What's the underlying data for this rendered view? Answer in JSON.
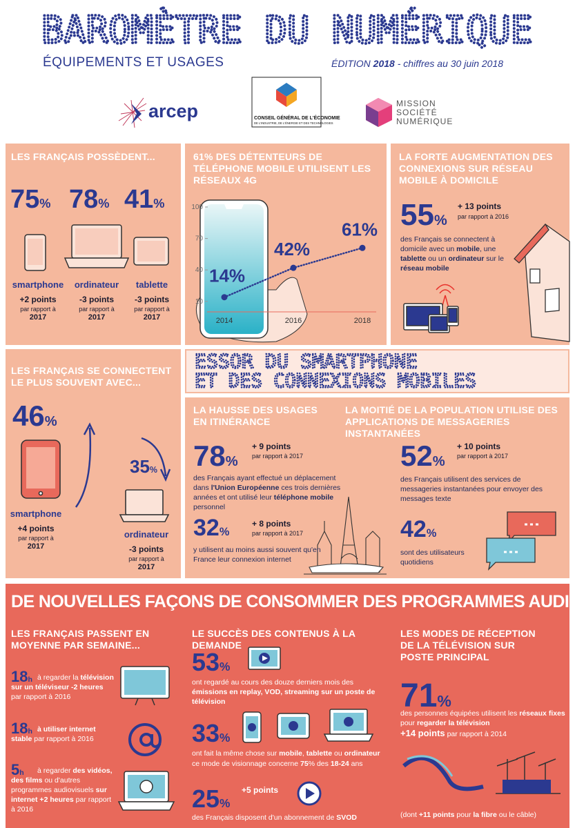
{
  "header": {
    "title": "BAROMÈTRE DU NUMÉRIQUE",
    "subtitle": "ÉQUIPEMENTS ET USAGES",
    "edition": [
      "ÉDITION ",
      "2018",
      " - chiffres au 30 juin 2018"
    ]
  },
  "logos": {
    "arcep": "arcep",
    "cge": [
      "CONSEIL GÉNÉRAL DE L'ÉCONOMIE",
      "DE L'INDUSTRIE, DE L'ÉNERGIE ET DES TECHNOLOGIES"
    ],
    "msn": [
      "MISSION",
      "SOCIÉTÉ",
      "NUMÉRIQUE"
    ]
  },
  "possession": {
    "title": "LES FRANÇAIS POSSÈDENT...",
    "items": [
      {
        "value": "75",
        "unit": "%",
        "label": "smartphone",
        "change": "+2 points",
        "ref": "par rapport à",
        "year": "2017"
      },
      {
        "value": "78",
        "unit": "%",
        "label": "ordinateur",
        "change": "-3 points",
        "ref": "par rapport à",
        "year": "2017"
      },
      {
        "value": "41",
        "unit": "%",
        "label": "tablette",
        "change": "-3 points",
        "ref": "par rapport à",
        "year": "2017"
      }
    ]
  },
  "chart_data": {
    "type": "line",
    "title": "61% DES DÉTENTEURS DE TÉLÉPHONE MOBILE UTILISENT LES RÉSEAUX 4G",
    "x": [
      2014,
      2016,
      2018
    ],
    "xlim": [
      2014,
      2018
    ],
    "xticks": [
      2014,
      2016,
      2018
    ],
    "values": [
      14,
      42,
      61
    ],
    "value_labels": [
      "14%",
      "42%",
      "61%"
    ],
    "ylim": [
      0,
      100
    ],
    "yticks": [
      10,
      40,
      70,
      100
    ],
    "color": "#2b3990"
  },
  "home_mobile": {
    "title": "LA FORTE AUGMENTATION DES CONNEXIONS SUR RÉSEAU MOBILE À DOMICILE",
    "value": "55",
    "unit": "%",
    "change": "+ 13 points",
    "ref": "par rapport à 2016",
    "text": [
      "des Français se connectent à domicile avec un ",
      "mobile",
      ", une ",
      "tablette",
      " ou un ",
      "ordinateur",
      " sur le ",
      "réseau mobile"
    ]
  },
  "connect": {
    "title": "LES FRANÇAIS SE CONNECTENT LE PLUS SOUVENT AVEC...",
    "items": [
      {
        "value": "46",
        "unit": "%",
        "label": "smartphone",
        "change": "+4 points",
        "ref": "par rapport à",
        "year": "2017"
      },
      {
        "value": "35",
        "unit": "%",
        "label": "ordinateur",
        "change": "-3 points",
        "ref": "par rapport à",
        "year": "2017"
      }
    ]
  },
  "banner": [
    "ESSOR DU SMARTPHONE",
    "ET DES CONNEXIONS MOBILES"
  ],
  "roaming": {
    "title": "LA HAUSSE DES USAGES EN ITINÉRANCE",
    "stats": [
      {
        "value": "78",
        "unit": "%",
        "change": "+ 9 points",
        "ref": "par rapport à 2017",
        "text": [
          "des Français ayant effectué un déplacement dans ",
          "l'Union Européenne",
          " ces trois dernières années et ont utilisé leur ",
          "téléphone mobile",
          " personnel"
        ]
      },
      {
        "value": "32",
        "unit": "%",
        "change": "+ 8 points",
        "ref": "par rapport à 2017",
        "text": [
          "y utilisent au moins aussi souvent qu'en France leur connexion internet"
        ]
      }
    ]
  },
  "messaging": {
    "title": "LA MOITIÉ DE LA POPULATION UTILISE DES APPLICATIONS DE MESSAGERIES INSTANTANÉES",
    "stats": [
      {
        "value": "52",
        "unit": "%",
        "change": "+ 10 points",
        "ref": "par rapport à 2017",
        "text": [
          "des Français utilisent des services de messageries instantanées pour envoyer des messages texte"
        ]
      },
      {
        "value": "42",
        "unit": "%",
        "text": [
          "sont des utilisateurs quotidiens"
        ]
      }
    ]
  },
  "audiovisual": {
    "title": "DE NOUVELLES FAÇONS DE CONSOMMER DES PROGRAMMES AUDIOVISUELS",
    "weekly": {
      "title": "LES FRANÇAIS PASSENT EN MOYENNE PAR SEMAINE...",
      "items": [
        {
          "value": "18",
          "unit": "h",
          "text": [
            "à regarder la ",
            "télévision sur un téléviseur",
            " -2 heures",
            " par rapport à 2016"
          ]
        },
        {
          "value": "18",
          "unit": "h",
          "text": [
            "à utiliser internet stable",
            " par rapport à 2016"
          ]
        },
        {
          "value": "5",
          "unit": "h",
          "text": [
            "à regarder ",
            "des vidéos, des films",
            " ou d'autres programmes audiovisuels ",
            "sur internet",
            " +2 heures",
            " par rapport à 2016"
          ]
        }
      ]
    },
    "demand": {
      "title": "LE SUCCÈS DES CONTENUS À LA DEMANDE",
      "stats": [
        {
          "value": "53",
          "unit": "%",
          "text": [
            "ont regardé au cours des douze derniers mois des ",
            "émissions en replay, VOD, streaming sur un poste de télévision"
          ]
        },
        {
          "value": "33",
          "unit": "%",
          "text": [
            "ont fait la même chose sur ",
            "mobile",
            ", ",
            "tablette",
            " ou ",
            "ordinateur"
          ],
          "note": [
            "ce mode de visionnage concerne ",
            "75",
            "% des ",
            "18-24",
            " ans"
          ]
        },
        {
          "value": "25",
          "unit": "%",
          "change": "+5 points",
          "text": [
            "des Français disposent d'un abonnement de ",
            "SVOD"
          ]
        }
      ]
    },
    "reception": {
      "title": "LES MODES DE RÉCEPTION DE LA TÉLÉVISION SUR POSTE PRINCIPAL",
      "value": "71",
      "unit": "%",
      "text": [
        "des personnes équipées utilisent les ",
        "réseaux fixes",
        " pour ",
        "regarder la télévision"
      ],
      "change": "+14 points",
      "ref": " par rapport à 2014",
      "note": [
        "(dont ",
        "+11 points",
        " pour ",
        "la fibre",
        " ou le câble)"
      ]
    }
  }
}
